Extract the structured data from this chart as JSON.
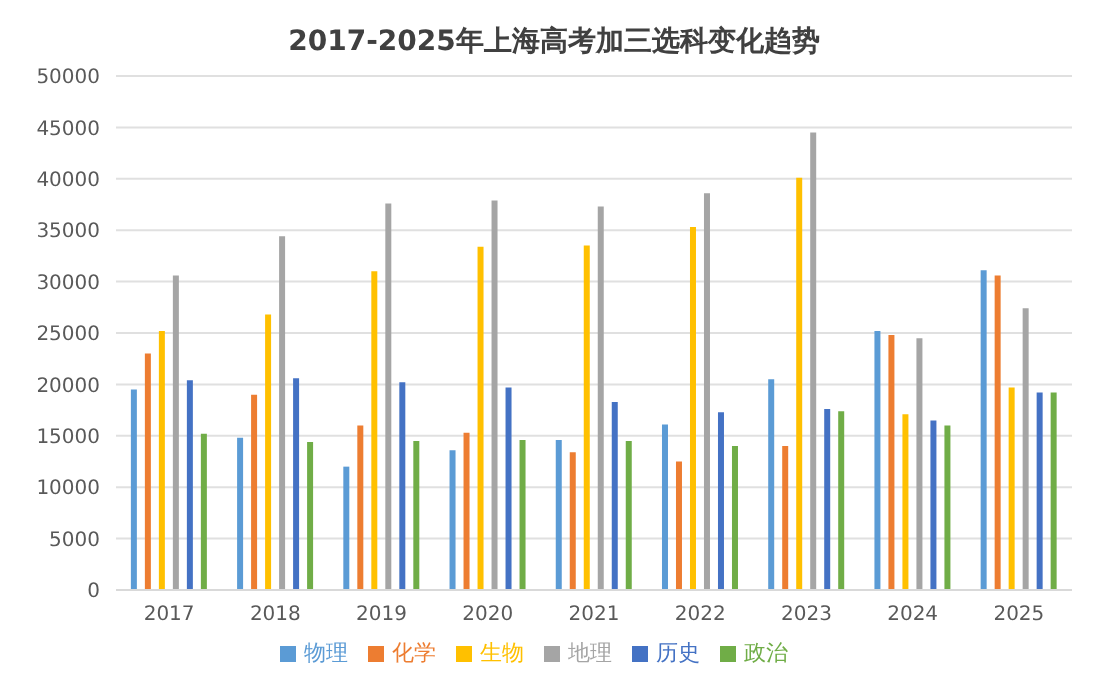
{
  "chart_data": {
    "type": "bar",
    "title": "2017-2025年上海高考加三选科变化趋势",
    "categories": [
      "2017",
      "2018",
      "2019",
      "2020",
      "2021",
      "2022",
      "2023",
      "2024",
      "2025"
    ],
    "series": [
      {
        "name": "物理",
        "color": "#5b9bd5",
        "values": [
          19500,
          14800,
          12000,
          13600,
          14600,
          16100,
          20500,
          25200,
          31100
        ]
      },
      {
        "name": "化学",
        "color": "#ed7d31",
        "values": [
          23000,
          19000,
          16000,
          15300,
          13400,
          12500,
          14000,
          24800,
          30600
        ]
      },
      {
        "name": "生物",
        "color": "#ffc000",
        "values": [
          25200,
          26800,
          31000,
          33400,
          33500,
          35300,
          40100,
          17100,
          19700
        ]
      },
      {
        "name": "地理",
        "color": "#a5a5a5",
        "values": [
          30600,
          34400,
          37600,
          37900,
          37300,
          38600,
          44500,
          24500,
          27400
        ]
      },
      {
        "name": "历史",
        "color": "#4472c4",
        "values": [
          20400,
          20600,
          20200,
          19700,
          18300,
          17300,
          17600,
          16500,
          19200
        ]
      },
      {
        "name": "政治",
        "color": "#70ad47",
        "values": [
          15200,
          14400,
          14500,
          14600,
          14500,
          14000,
          17400,
          16000,
          19200
        ]
      }
    ],
    "ylim": [
      0,
      50000
    ],
    "yticks": [
      0,
      5000,
      10000,
      15000,
      20000,
      25000,
      30000,
      35000,
      40000,
      45000,
      50000
    ],
    "grid": "y",
    "legend": "bottom"
  }
}
